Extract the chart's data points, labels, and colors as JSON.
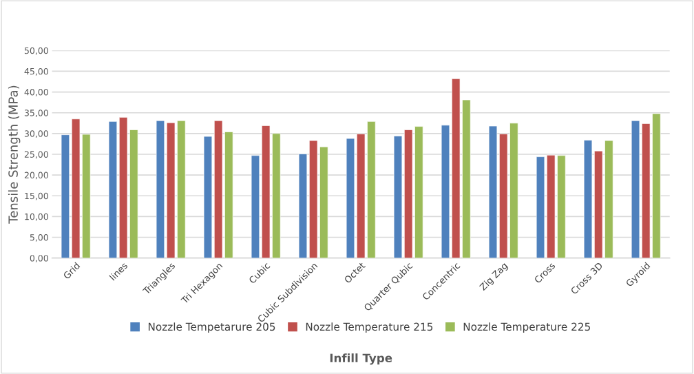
{
  "chart_data": {
    "type": "bar",
    "xlabel": "Infill Type",
    "ylabel": "Tensile Strength (MPa)",
    "categories": [
      "Grid",
      "lines",
      "Triangles",
      "Tri Hexagon",
      "Cubic",
      "Cubic Subdivision",
      "Octet",
      "Quarter Qubic",
      "Concentric",
      "Zig Zag",
      "Cross",
      "Cross 3D",
      "Gyroid"
    ],
    "series": [
      {
        "name": "Nozzle Tempetarure 205",
        "color": "#4f81bd",
        "values": [
          29.7,
          32.9,
          33.1,
          29.3,
          24.7,
          25.1,
          28.8,
          29.4,
          32.0,
          31.8,
          24.4,
          28.4,
          33.1
        ]
      },
      {
        "name": "Nozzle Temperature 215",
        "color": "#c0504d",
        "values": [
          33.5,
          33.9,
          32.6,
          33.1,
          31.9,
          28.3,
          29.9,
          30.9,
          43.2,
          29.9,
          24.8,
          25.8,
          32.4
        ]
      },
      {
        "name": "Nozzle Temperature 225",
        "color": "#9bbb59",
        "values": [
          29.8,
          30.9,
          33.1,
          30.4,
          30.0,
          26.8,
          32.9,
          31.7,
          38.1,
          32.5,
          24.7,
          28.3,
          34.8
        ]
      }
    ],
    "ylim": [
      0,
      50
    ],
    "yticks": [
      {
        "value": 0,
        "label": "0,00"
      },
      {
        "value": 5,
        "label": "5,00"
      },
      {
        "value": 10,
        "label": "10,00"
      },
      {
        "value": 15,
        "label": "15,00"
      },
      {
        "value": 20,
        "label": "20,00"
      },
      {
        "value": 25,
        "label": "25,00"
      },
      {
        "value": 30,
        "label": "30,00"
      },
      {
        "value": 35,
        "label": "35,00"
      },
      {
        "value": 40,
        "label": "40,00"
      },
      {
        "value": 45,
        "label": "45,00"
      },
      {
        "value": 50,
        "label": "50,00"
      }
    ],
    "grid": "y",
    "legend": "bottom"
  }
}
